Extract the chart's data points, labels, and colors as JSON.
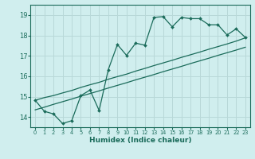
{
  "xlabel": "Humidex (Indice chaleur)",
  "background_color": "#d0eeee",
  "grid_color": "#b8d8d8",
  "line_color": "#1a6b5a",
  "xlim": [
    -0.5,
    23.5
  ],
  "ylim": [
    13.5,
    19.5
  ],
  "xticks": [
    0,
    1,
    2,
    3,
    4,
    5,
    6,
    7,
    8,
    9,
    10,
    11,
    12,
    13,
    14,
    15,
    16,
    17,
    18,
    19,
    20,
    21,
    22,
    23
  ],
  "yticks": [
    14,
    15,
    16,
    17,
    18,
    19
  ],
  "line_jagged_x": [
    0,
    1,
    2,
    3,
    4,
    5,
    6,
    7,
    8,
    9,
    10,
    11,
    12,
    13,
    14,
    15,
    16,
    17,
    18,
    19,
    20,
    21,
    22,
    23
  ],
  "line_jagged_y": [
    14.82,
    14.28,
    14.15,
    13.68,
    13.82,
    15.05,
    15.32,
    14.32,
    16.32,
    17.55,
    17.02,
    17.62,
    17.52,
    18.88,
    18.92,
    18.42,
    18.88,
    18.82,
    18.82,
    18.52,
    18.52,
    18.02,
    18.32,
    17.9
  ],
  "line_upper_x": [
    0,
    1,
    2,
    3,
    4,
    5,
    6,
    7,
    8,
    9,
    10,
    11,
    12,
    13,
    14,
    15,
    16,
    17,
    18,
    19,
    20,
    21,
    22,
    23
  ],
  "line_upper_y": [
    14.82,
    14.95,
    15.05,
    15.18,
    15.3,
    15.45,
    15.58,
    15.7,
    15.85,
    15.98,
    16.1,
    16.25,
    16.38,
    16.52,
    16.65,
    16.78,
    16.92,
    17.05,
    17.18,
    17.32,
    17.45,
    17.58,
    17.72,
    17.88
  ],
  "line_lower_x": [
    0,
    1,
    2,
    3,
    4,
    5,
    6,
    7,
    8,
    9,
    10,
    11,
    12,
    13,
    14,
    15,
    16,
    17,
    18,
    19,
    20,
    21,
    22,
    23
  ],
  "line_lower_y": [
    14.35,
    14.48,
    14.62,
    14.75,
    14.88,
    15.02,
    15.15,
    15.28,
    15.42,
    15.55,
    15.68,
    15.82,
    15.95,
    16.08,
    16.22,
    16.35,
    16.48,
    16.62,
    16.75,
    16.88,
    17.02,
    17.15,
    17.28,
    17.42
  ]
}
